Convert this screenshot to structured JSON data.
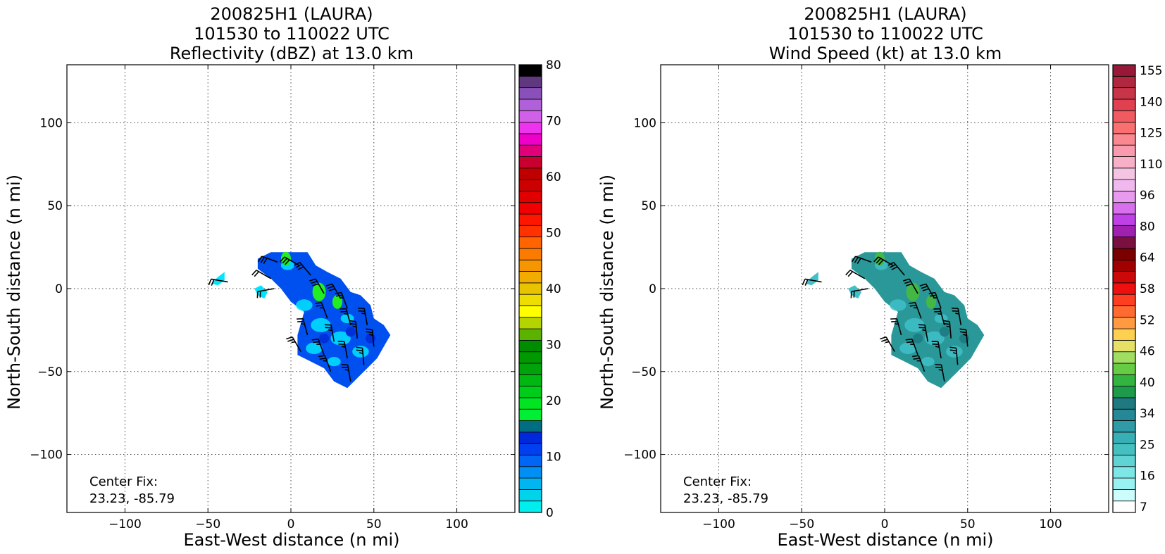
{
  "chart_data": [
    {
      "type": "heatmap",
      "title_lines": [
        "200825H1 (LAURA)",
        "101530 to 110022 UTC",
        "Reflectivity (dBZ) at 13.0 km"
      ],
      "xlabel": "East-West distance (n mi)",
      "ylabel": "North-South distance (n mi)",
      "xlim": [
        -135,
        135
      ],
      "ylim": [
        -135,
        135
      ],
      "xticks": [
        -100,
        -50,
        0,
        50,
        100
      ],
      "yticks": [
        -100,
        -50,
        0,
        50,
        100
      ],
      "xtick_labels": [
        "−100",
        "−50",
        "0",
        "50",
        "100"
      ],
      "ytick_labels": [
        "−100",
        "−50",
        "0",
        "50",
        "100"
      ],
      "grid": true,
      "annotation": [
        "Center Fix:",
        "23.23, -85.79"
      ],
      "colorbar": {
        "min": 0,
        "max": 80,
        "tick_values": [
          0,
          10,
          20,
          30,
          40,
          50,
          60,
          70,
          80
        ],
        "tick_labels": [
          "0",
          "10",
          "20",
          "30",
          "40",
          "50",
          "60",
          "70",
          "80"
        ],
        "colors": [
          "#00eeee",
          "#00d3ea",
          "#00b5f0",
          "#0090f5",
          "#0066f5",
          "#0040f0",
          "#0028dc",
          "#006e80",
          "#00ee33",
          "#00e422",
          "#00cc1a",
          "#00b811",
          "#00a40a",
          "#009a00",
          "#008c00",
          "#5bb300",
          "#b4d400",
          "#ffff00",
          "#eedd00",
          "#e8c300",
          "#f2ab00",
          "#f59500",
          "#fb7b00",
          "#ff6400",
          "#ff3200",
          "#ff1600",
          "#f00000",
          "#e00000",
          "#cc0000",
          "#c00000",
          "#c80030",
          "#e0007a",
          "#ee00c8",
          "#ee33ee",
          "#d060e8",
          "#b060d8",
          "#8850b8",
          "#603880",
          "#000000"
        ]
      },
      "field_color": "#0050f0",
      "echo_colors": [
        "#00e5ff",
        "#22ee22",
        "#0030d8"
      ],
      "wind_barbs": [
        {
          "x": -38,
          "y": 4,
          "dir": 280,
          "kt": 20
        },
        {
          "x": -8,
          "y": 16,
          "dir": 290,
          "kt": 30
        },
        {
          "x": 5,
          "y": 14,
          "dir": 300,
          "kt": 30
        },
        {
          "x": -12,
          "y": 6,
          "dir": 300,
          "kt": 20
        },
        {
          "x": -10,
          "y": 0,
          "dir": 260,
          "kt": 20
        },
        {
          "x": 12,
          "y": 8,
          "dir": 320,
          "kt": 30
        },
        {
          "x": 20,
          "y": -3,
          "dir": 330,
          "kt": 30
        },
        {
          "x": 30,
          "y": -6,
          "dir": 330,
          "kt": 30
        },
        {
          "x": 34,
          "y": -12,
          "dir": 340,
          "kt": 25
        },
        {
          "x": 22,
          "y": -18,
          "dir": 340,
          "kt": 25
        },
        {
          "x": 36,
          "y": -22,
          "dir": 345,
          "kt": 25
        },
        {
          "x": 46,
          "y": -22,
          "dir": 350,
          "kt": 25
        },
        {
          "x": 10,
          "y": -28,
          "dir": 345,
          "kt": 25
        },
        {
          "x": 26,
          "y": -32,
          "dir": 350,
          "kt": 25
        },
        {
          "x": 40,
          "y": -30,
          "dir": 355,
          "kt": 25
        },
        {
          "x": 50,
          "y": -35,
          "dir": 355,
          "kt": 25
        },
        {
          "x": 6,
          "y": -38,
          "dir": 330,
          "kt": 25
        },
        {
          "x": 20,
          "y": -40,
          "dir": 340,
          "kt": 25
        },
        {
          "x": 34,
          "y": -42,
          "dir": 350,
          "kt": 25
        },
        {
          "x": 44,
          "y": -46,
          "dir": 355,
          "kt": 25
        },
        {
          "x": 24,
          "y": -50,
          "dir": 340,
          "kt": 25
        },
        {
          "x": 36,
          "y": -56,
          "dir": 350,
          "kt": 25
        }
      ]
    },
    {
      "type": "heatmap",
      "title_lines": [
        "200825H1 (LAURA)",
        "101530 to 110022 UTC",
        "Wind Speed (kt) at 13.0 km"
      ],
      "xlabel": "East-West distance (n mi)",
      "ylabel": "North-South distance (n mi)",
      "xlim": [
        -135,
        135
      ],
      "ylim": [
        -135,
        135
      ],
      "xticks": [
        -100,
        -50,
        0,
        50,
        100
      ],
      "yticks": [
        -100,
        -50,
        0,
        50,
        100
      ],
      "xtick_labels": [
        "−100",
        "−50",
        "0",
        "50",
        "100"
      ],
      "ytick_labels": [
        "−100",
        "−50",
        "0",
        "50",
        "100"
      ],
      "grid": true,
      "annotation": [
        "Center Fix:",
        "23.23, -85.79"
      ],
      "colorbar": {
        "min": 7,
        "max": 160,
        "tick_labels": [
          "7",
          "16",
          "25",
          "34",
          "40",
          "46",
          "52",
          "58",
          "64",
          "80",
          "96",
          "110",
          "125",
          "140",
          "155"
        ],
        "colors": [
          "#ffffff",
          "#ccfcfc",
          "#99f2f2",
          "#7de6e6",
          "#60d4d4",
          "#45c0c0",
          "#38aeb5",
          "#2e9ba6",
          "#258896",
          "#1e7a80",
          "#1d9a4a",
          "#33b340",
          "#66cc44",
          "#a0dd60",
          "#e6e066",
          "#fdd050",
          "#ff9a40",
          "#ff6a30",
          "#ff3d20",
          "#ee1010",
          "#cc0808",
          "#a00000",
          "#7a0000",
          "#7a1040",
          "#a020b0",
          "#c040e8",
          "#d870ee",
          "#e89aee",
          "#f0b8ee",
          "#f4c4e2",
          "#f8b0c8",
          "#fa9aae",
          "#fa8890",
          "#fa7070",
          "#f05a60",
          "#e04050",
          "#c83448",
          "#b02840",
          "#981838"
        ]
      },
      "field_color": "#2a9898",
      "echo_colors": [
        "#40c0c8",
        "#44b844",
        "#1e7e86"
      ],
      "wind_barbs": [
        {
          "x": -38,
          "y": 4,
          "dir": 280,
          "kt": 20
        },
        {
          "x": -8,
          "y": 16,
          "dir": 290,
          "kt": 30
        },
        {
          "x": 5,
          "y": 14,
          "dir": 300,
          "kt": 30
        },
        {
          "x": -12,
          "y": 6,
          "dir": 300,
          "kt": 20
        },
        {
          "x": -10,
          "y": 0,
          "dir": 260,
          "kt": 20
        },
        {
          "x": 12,
          "y": 8,
          "dir": 320,
          "kt": 30
        },
        {
          "x": 20,
          "y": -3,
          "dir": 330,
          "kt": 30
        },
        {
          "x": 30,
          "y": -6,
          "dir": 330,
          "kt": 30
        },
        {
          "x": 34,
          "y": -12,
          "dir": 340,
          "kt": 25
        },
        {
          "x": 22,
          "y": -18,
          "dir": 340,
          "kt": 25
        },
        {
          "x": 36,
          "y": -22,
          "dir": 345,
          "kt": 25
        },
        {
          "x": 46,
          "y": -22,
          "dir": 350,
          "kt": 25
        },
        {
          "x": 10,
          "y": -28,
          "dir": 345,
          "kt": 25
        },
        {
          "x": 26,
          "y": -32,
          "dir": 350,
          "kt": 25
        },
        {
          "x": 40,
          "y": -30,
          "dir": 355,
          "kt": 25
        },
        {
          "x": 50,
          "y": -35,
          "dir": 355,
          "kt": 25
        },
        {
          "x": 6,
          "y": -38,
          "dir": 330,
          "kt": 25
        },
        {
          "x": 20,
          "y": -40,
          "dir": 340,
          "kt": 25
        },
        {
          "x": 34,
          "y": -42,
          "dir": 350,
          "kt": 25
        },
        {
          "x": 44,
          "y": -46,
          "dir": 355,
          "kt": 25
        },
        {
          "x": 24,
          "y": -50,
          "dir": 340,
          "kt": 25
        },
        {
          "x": 36,
          "y": -56,
          "dir": 350,
          "kt": 25
        }
      ]
    }
  ]
}
